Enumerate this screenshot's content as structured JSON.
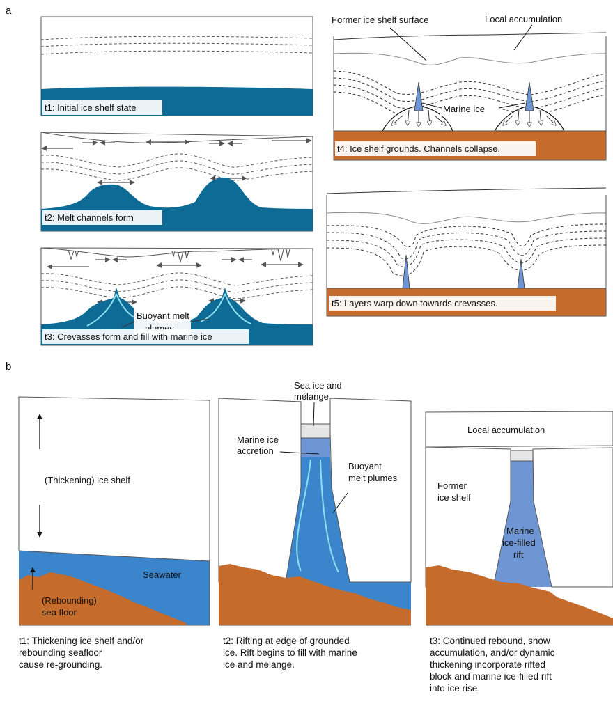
{
  "panel_a": {
    "label": "a",
    "t1": {
      "caption": "t1: Initial ice shelf state"
    },
    "t2": {
      "caption": "t2: Melt channels form"
    },
    "t3": {
      "caption": "t3: Crevasses form and fill with marine ice",
      "plume_line1": "Buoyant melt",
      "plume_line2": "plumes"
    },
    "t4": {
      "caption": "t4: Ice shelf grounds. Channels collapse.",
      "former_surface": "Former ice shelf surface",
      "local_accumulation": "Local accumulation",
      "marine_ice": "Marine ice"
    },
    "t5": {
      "caption": "t5: Layers warp down towards crevasses."
    }
  },
  "panel_b": {
    "label": "b",
    "t1": {
      "ice_shelf": "(Thickening) ice shelf",
      "seawater": "Seawater",
      "sea_floor_1": "(Rebounding)",
      "sea_floor_2": "sea floor",
      "caption": "t1: Thickening ice shelf and/or\nrebounding seafloor\ncause re-grounding."
    },
    "t2": {
      "sea_ice_1": "Sea ice and",
      "sea_ice_2": "mélange",
      "marine_accretion_1": "Marine ice",
      "marine_accretion_2": "accretion",
      "plumes_1": "Buoyant",
      "plumes_2": "melt plumes",
      "caption": "t2: Rifting at edge of grounded\nice. Rift begins to fill with marine\nice and melange."
    },
    "t3": {
      "local_accumulation": "Local accumulation",
      "former_1": "Former",
      "former_2": "ice shelf",
      "rift_1": "Marine",
      "rift_2": "ice-filled",
      "rift_3": "rift",
      "caption": "t3: Continued rebound, snow\naccumulation, and/or dynamic\nthickening incorporate rifted\nblock and marine ice-filled rift\ninto ice rise."
    }
  },
  "colors": {
    "sea_dark": "#0e6b96",
    "seawater": "#3a85cc",
    "marine_ice": "#6f96d4",
    "sea_floor": "#c56b2c",
    "plume_line": "#8fe0f0"
  }
}
